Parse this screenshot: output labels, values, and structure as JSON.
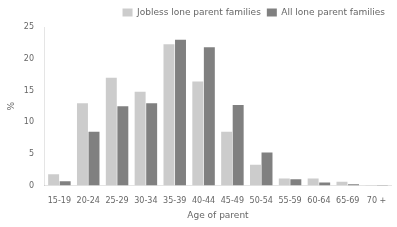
{
  "chart_data": {
    "type": "bar",
    "categories": [
      "15-19",
      "20-24",
      "25-29",
      "30-34",
      "35-39",
      "40-44",
      "45-49",
      "50-54",
      "55-59",
      "60-64",
      "65-69",
      "70 +"
    ],
    "series": [
      {
        "name": "Jobless lone parent families",
        "color": "#cccccc",
        "values": [
          1.8,
          13.0,
          17.0,
          14.8,
          22.3,
          16.4,
          8.5,
          3.3,
          1.1,
          1.1,
          0.6,
          0.1
        ]
      },
      {
        "name": "All lone parent families",
        "color": "#808080",
        "values": [
          0.7,
          8.5,
          12.5,
          13.0,
          23.0,
          21.8,
          12.7,
          5.2,
          1.0,
          0.5,
          0.2,
          0.1
        ]
      }
    ],
    "xlabel": "Age of parent",
    "ylabel": "%",
    "ylim": [
      0,
      25
    ],
    "yticks": [
      0,
      5,
      10,
      15,
      20,
      25
    ],
    "grid": false,
    "legend": "upper right"
  }
}
